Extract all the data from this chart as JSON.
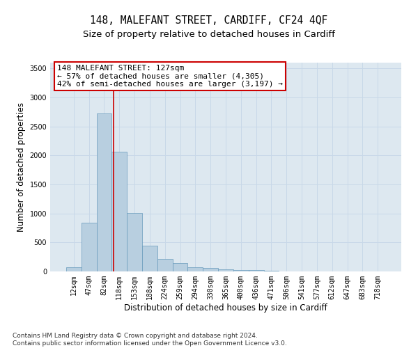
{
  "title": "148, MALEFANT STREET, CARDIFF, CF24 4QF",
  "subtitle": "Size of property relative to detached houses in Cardiff",
  "xlabel": "Distribution of detached houses by size in Cardiff",
  "ylabel": "Number of detached properties",
  "categories": [
    "12sqm",
    "47sqm",
    "82sqm",
    "118sqm",
    "153sqm",
    "188sqm",
    "224sqm",
    "259sqm",
    "294sqm",
    "330sqm",
    "365sqm",
    "400sqm",
    "436sqm",
    "471sqm",
    "506sqm",
    "541sqm",
    "577sqm",
    "612sqm",
    "647sqm",
    "683sqm",
    "718sqm"
  ],
  "values": [
    70,
    840,
    2720,
    2060,
    1010,
    440,
    220,
    140,
    70,
    55,
    35,
    25,
    20,
    10,
    5,
    5,
    5,
    5,
    5,
    5,
    5
  ],
  "bar_color": "#b8cfe0",
  "bar_edge_color": "#6699bb",
  "bar_edge_width": 0.5,
  "vline_x": 2.6,
  "vline_color": "#cc0000",
  "annotation_text": "148 MALEFANT STREET: 127sqm\n← 57% of detached houses are smaller (4,305)\n42% of semi-detached houses are larger (3,197) →",
  "annotation_box_facecolor": "#ffffff",
  "annotation_box_edgecolor": "#cc0000",
  "annotation_fontsize": 8,
  "ylim": [
    0,
    3600
  ],
  "yticks": [
    0,
    500,
    1000,
    1500,
    2000,
    2500,
    3000,
    3500
  ],
  "title_fontsize": 10.5,
  "subtitle_fontsize": 9.5,
  "xlabel_fontsize": 8.5,
  "ylabel_fontsize": 8.5,
  "footer_text": "Contains HM Land Registry data © Crown copyright and database right 2024.\nContains public sector information licensed under the Open Government Licence v3.0.",
  "footer_fontsize": 6.5,
  "background_color": "#ffffff",
  "plot_bg_color": "#dde8f0",
  "grid_color": "#c8d8e8",
  "tick_label_fontsize": 7
}
